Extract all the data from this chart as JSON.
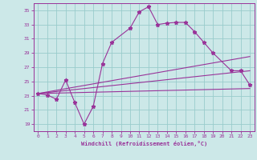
{
  "xlabel": "Windchill (Refroidissement éolien,°C)",
  "ylabel": "",
  "background_color": "#cce8e8",
  "grid_color": "#99cccc",
  "line_color": "#993399",
  "xlim": [
    -0.5,
    23.5
  ],
  "ylim": [
    18,
    36
  ],
  "xticks": [
    0,
    1,
    2,
    3,
    4,
    5,
    6,
    7,
    8,
    9,
    10,
    11,
    12,
    13,
    14,
    15,
    16,
    17,
    18,
    19,
    20,
    21,
    22,
    23
  ],
  "yticks": [
    19,
    21,
    23,
    25,
    27,
    29,
    31,
    33,
    35
  ],
  "line1": {
    "x": [
      0,
      1,
      2,
      3,
      4,
      5,
      6,
      7,
      8,
      10,
      11,
      12,
      13,
      14,
      15,
      16,
      17,
      18,
      19,
      21,
      22,
      23
    ],
    "y": [
      23.3,
      23.1,
      22.5,
      25.2,
      22.0,
      19.0,
      21.5,
      27.5,
      30.5,
      32.5,
      34.8,
      35.5,
      33.0,
      33.2,
      33.3,
      33.3,
      32.0,
      30.5,
      29.0,
      26.5,
      26.5,
      24.5
    ]
  },
  "line2": {
    "x": [
      0,
      23
    ],
    "y": [
      23.3,
      24.0
    ]
  },
  "line3": {
    "x": [
      0,
      23
    ],
    "y": [
      23.3,
      26.5
    ]
  },
  "line4": {
    "x": [
      0,
      23
    ],
    "y": [
      23.3,
      28.5
    ]
  }
}
